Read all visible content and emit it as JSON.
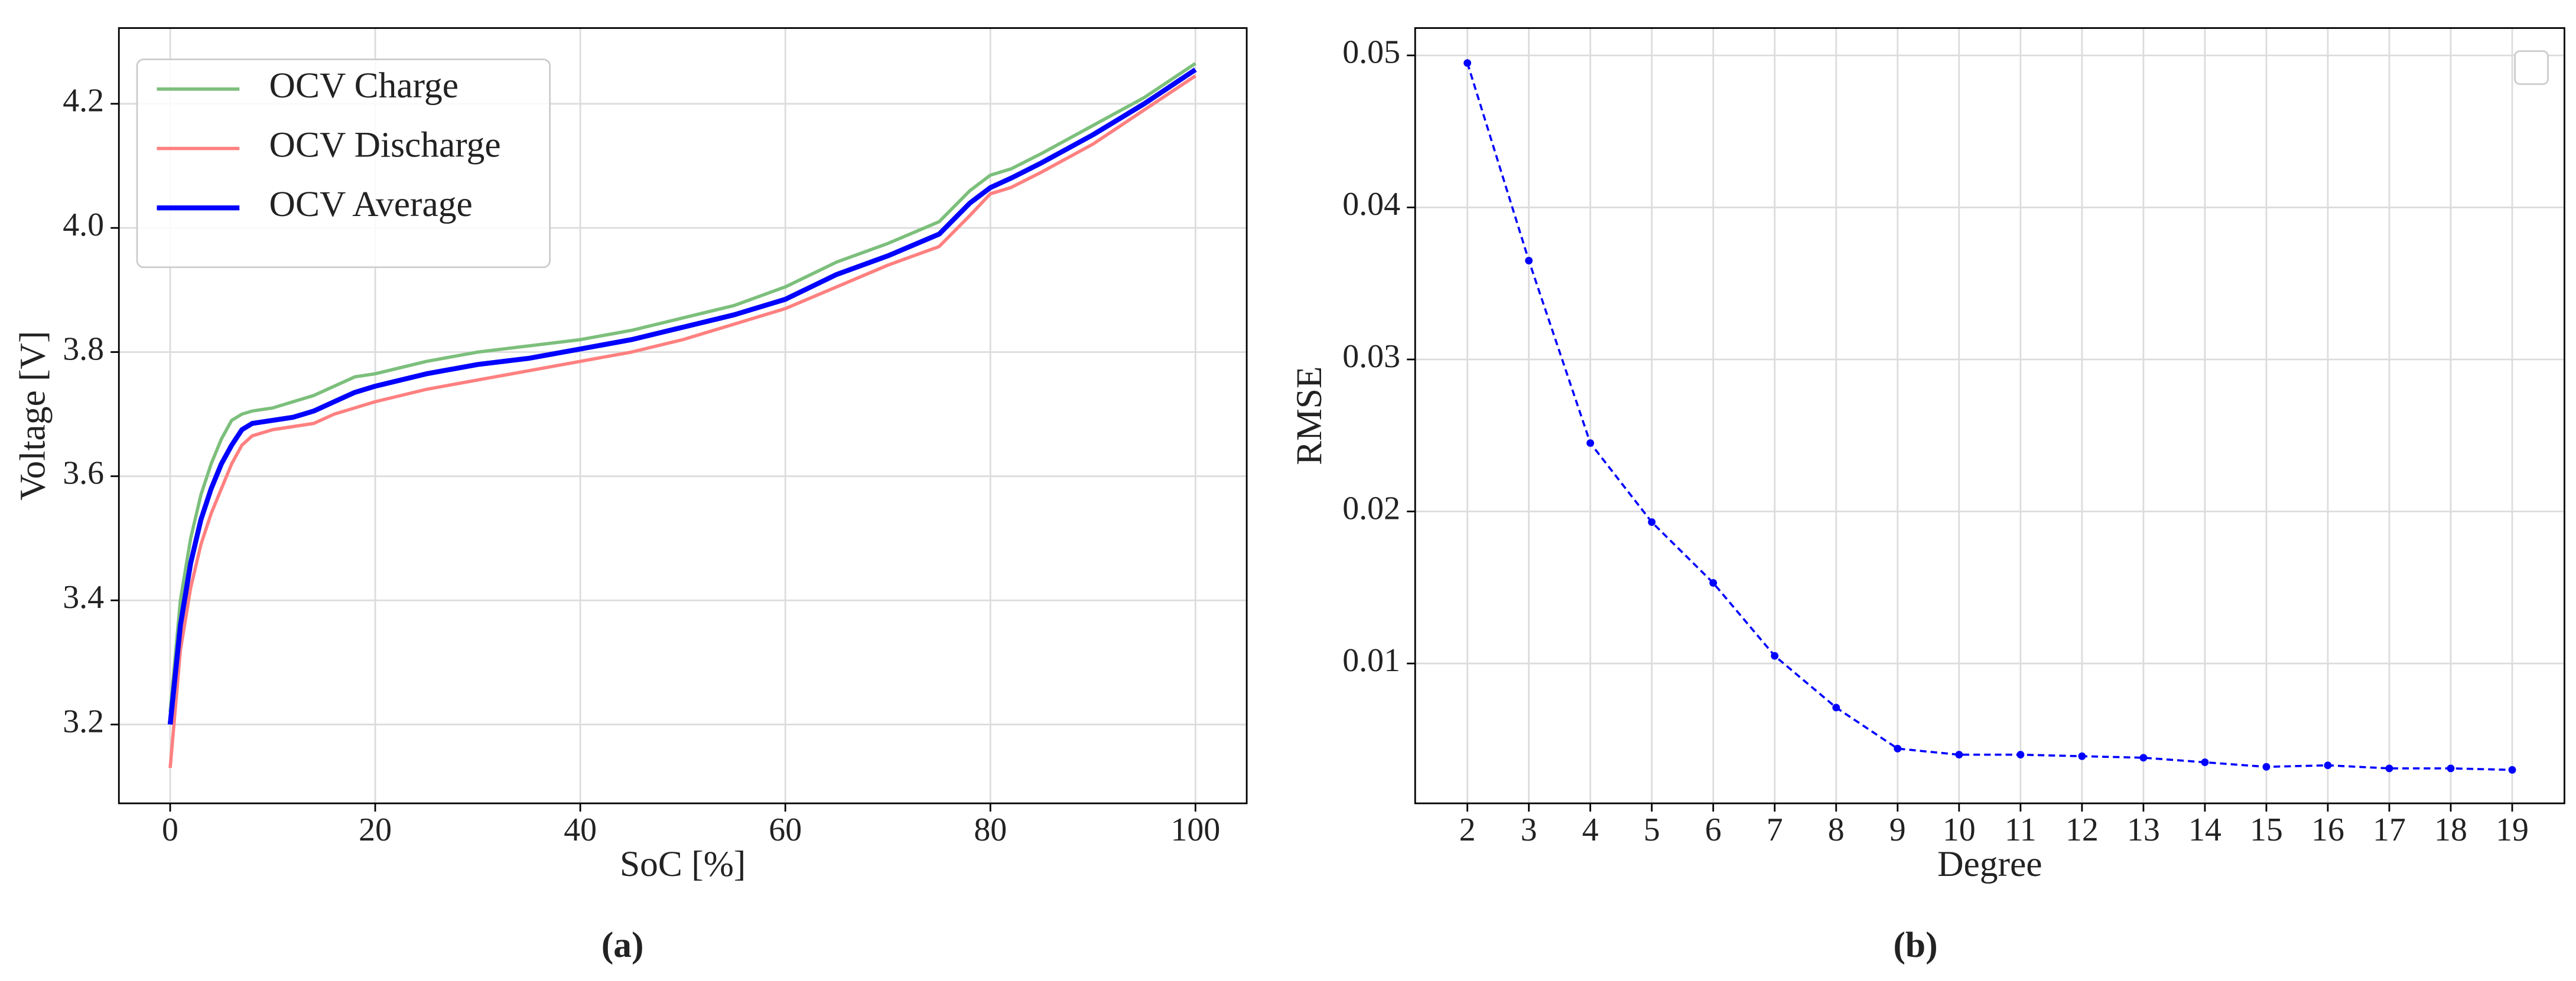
{
  "chart_data": [
    {
      "type": "line",
      "caption": "(a)",
      "x_label": "SoC [%]",
      "y_label": "Voltage [V]",
      "x": [
        0,
        1,
        2,
        3,
        4,
        5,
        6,
        7,
        8,
        10,
        12,
        14,
        16,
        18,
        20,
        25,
        30,
        35,
        40,
        45,
        50,
        55,
        60,
        65,
        70,
        75,
        78,
        80,
        82,
        85,
        90,
        95,
        100
      ],
      "series": [
        {
          "name": "OCV Charge",
          "color": "#7cbf7c",
          "width": 2,
          "values": [
            3.22,
            3.4,
            3.5,
            3.57,
            3.62,
            3.66,
            3.69,
            3.7,
            3.705,
            3.71,
            3.72,
            3.73,
            3.745,
            3.76,
            3.765,
            3.785,
            3.8,
            3.81,
            3.82,
            3.835,
            3.855,
            3.875,
            3.905,
            3.945,
            3.975,
            4.01,
            4.06,
            4.085,
            4.095,
            4.12,
            4.165,
            4.21,
            4.265
          ]
        },
        {
          "name": "OCV Discharge",
          "color": "#ff8080",
          "width": 2,
          "values": [
            3.13,
            3.32,
            3.42,
            3.49,
            3.54,
            3.58,
            3.62,
            3.65,
            3.665,
            3.675,
            3.68,
            3.685,
            3.7,
            3.71,
            3.72,
            3.74,
            3.755,
            3.77,
            3.785,
            3.8,
            3.82,
            3.845,
            3.87,
            3.905,
            3.94,
            3.97,
            4.02,
            4.055,
            4.065,
            4.09,
            4.135,
            4.19,
            4.245
          ]
        },
        {
          "name": "OCV Average",
          "color": "#0000ff",
          "width": 3,
          "values": [
            3.2,
            3.36,
            3.46,
            3.53,
            3.58,
            3.62,
            3.65,
            3.675,
            3.685,
            3.69,
            3.695,
            3.705,
            3.72,
            3.735,
            3.745,
            3.765,
            3.78,
            3.79,
            3.805,
            3.82,
            3.84,
            3.86,
            3.885,
            3.925,
            3.955,
            3.99,
            4.04,
            4.065,
            4.08,
            4.105,
            4.15,
            4.2,
            4.255
          ]
        }
      ],
      "xlim": [
        -5,
        105
      ],
      "xticks": [
        0,
        20,
        40,
        60,
        80,
        100
      ],
      "ylim": [
        3.073,
        4.322
      ],
      "yticks": [
        3.2,
        3.4,
        3.6,
        3.8,
        {
          "value": 4,
          "label": "4.0"
        },
        4.2
      ],
      "grid": true,
      "legend": "upper left"
    },
    {
      "type": "line",
      "caption": "(b)",
      "x_label": "Degree",
      "y_label": "RMSE",
      "x": [
        2,
        3,
        4,
        5,
        6,
        7,
        8,
        9,
        10,
        11,
        12,
        13,
        14,
        15,
        16,
        17,
        18,
        19
      ],
      "series": [
        {
          "color": "#0000ff",
          "width": 1.3,
          "linestyle": "dashed",
          "marker": true,
          "values": [
            0.0495,
            0.0365,
            0.0245,
            0.0193,
            0.0153,
            0.0105,
            0.0071,
            0.0044,
            0.004,
            0.004,
            0.0039,
            0.0038,
            0.0035,
            0.0032,
            0.0033,
            0.0031,
            0.0031,
            0.003
          ]
        }
      ],
      "xlim": [
        1.15,
        19.85
      ],
      "xticks": [
        2,
        3,
        4,
        5,
        6,
        7,
        8,
        9,
        10,
        11,
        12,
        13,
        14,
        15,
        16,
        17,
        18,
        19
      ],
      "ylim": [
        0.0008,
        0.0518
      ],
      "yticks": [
        0.01,
        0.02,
        0.03,
        0.04,
        0.05
      ],
      "grid": true,
      "legend": "upper right"
    }
  ]
}
